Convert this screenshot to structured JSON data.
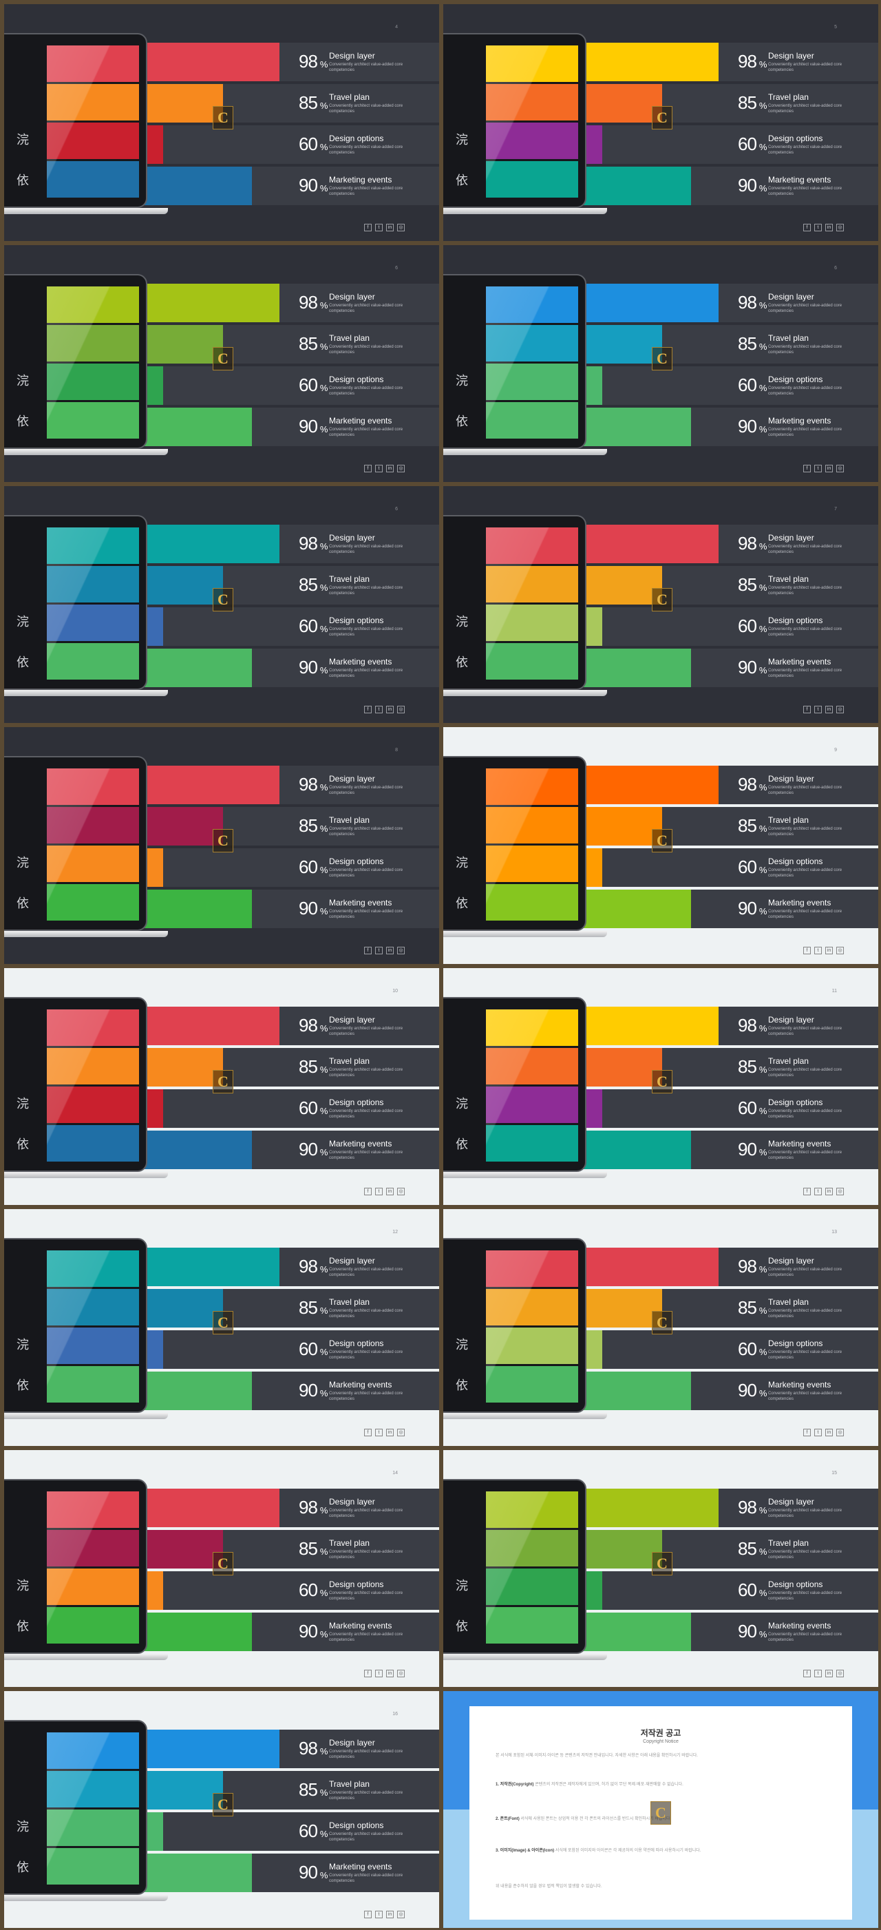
{
  "items": [
    {
      "value": "98",
      "symbol": "%",
      "title": "Design layer",
      "subtitle": "Conveniently architect value-added core competencies"
    },
    {
      "value": "85",
      "symbol": "%",
      "title": "Travel plan",
      "subtitle": "Conveniently architect value-added core competencies"
    },
    {
      "value": "60",
      "symbol": "%",
      "title": "Design options",
      "subtitle": "Conveniently architect value-added core competencies"
    },
    {
      "value": "90",
      "symbol": "%",
      "title": "Marketing events",
      "subtitle": "Conveniently architect value-added core competencies"
    }
  ],
  "stamp_letter": "C",
  "cjk_glyphs": [
    "浣",
    "依"
  ],
  "social_icons": [
    "facebook-icon",
    "twitter-icon",
    "linkedin-icon",
    "instagram-icon"
  ],
  "social_glyphs": [
    "f",
    "t",
    "in",
    "◎"
  ],
  "slides": [
    {
      "theme": "dark",
      "page": "4",
      "colors": [
        "#e0414f",
        "#f7891e",
        "#c9202e",
        "#1f6fa6"
      ]
    },
    {
      "theme": "dark",
      "page": "5",
      "colors": [
        "#ffcc00",
        "#f46a24",
        "#8e2c96",
        "#0aa591"
      ]
    },
    {
      "theme": "dark",
      "page": "6",
      "colors": [
        "#a4c316",
        "#77ac37",
        "#2fa44f",
        "#4cba5d"
      ]
    },
    {
      "theme": "dark",
      "page": "6",
      "colors": [
        "#1d8fdf",
        "#169ec0",
        "#4db86d",
        "#4fb96a"
      ]
    },
    {
      "theme": "dark",
      "page": "6",
      "colors": [
        "#0aa4a2",
        "#1585ab",
        "#3b6bb3",
        "#4cb864"
      ]
    },
    {
      "theme": "dark",
      "page": "7",
      "colors": [
        "#e0414f",
        "#f2a21b",
        "#a9c85c",
        "#4cb864"
      ]
    },
    {
      "theme": "dark",
      "page": "8",
      "colors": [
        "#e0414f",
        "#a11c4a",
        "#f7891e",
        "#3cb442"
      ]
    },
    {
      "theme": "light",
      "page": "9",
      "colors": [
        "#ff6600",
        "#ff8a00",
        "#ff9c00",
        "#86c61f"
      ]
    },
    {
      "theme": "light",
      "page": "10",
      "colors": [
        "#e0414f",
        "#f7891e",
        "#c9202e",
        "#1f6fa6"
      ]
    },
    {
      "theme": "light",
      "page": "11",
      "colors": [
        "#ffcc00",
        "#f46a24",
        "#8e2c96",
        "#0aa591"
      ]
    },
    {
      "theme": "light",
      "page": "12",
      "colors": [
        "#0aa4a2",
        "#1585ab",
        "#3b6bb3",
        "#4cb864"
      ]
    },
    {
      "theme": "light",
      "page": "13",
      "colors": [
        "#e0414f",
        "#f2a21b",
        "#a9c85c",
        "#4cb864"
      ]
    },
    {
      "theme": "light",
      "page": "14",
      "colors": [
        "#e0414f",
        "#a11c4a",
        "#f7891e",
        "#3cb442"
      ]
    },
    {
      "theme": "light",
      "page": "15",
      "colors": [
        "#a4c316",
        "#77ac37",
        "#2fa44f",
        "#4cba5d"
      ]
    },
    {
      "theme": "light",
      "page": "16",
      "colors": [
        "#1d8fdf",
        "#169ec0",
        "#4db86d",
        "#4fb96a"
      ]
    }
  ],
  "notice": {
    "title": "저작권 공고",
    "subtitle": "Copyright Notice",
    "paragraphs": [
      {
        "heading": "",
        "text": "본 서식에 포함된 서체·이미지·아이콘 등 콘텐츠의 저작권 안내입니다. 자세한 사항은 아래 내용을 확인하시기 바랍니다."
      },
      {
        "heading": "1. 저작권(Copyright)",
        "text": " 콘텐츠의 저작권은 제작자에게 있으며, 허가 없이 무단 복제·배포·재판매할 수 없습니다."
      },
      {
        "heading": "2. 폰트(Font)",
        "text": " 서식에 사용된 폰트는 상업적 이용 전 각 폰트의 라이선스를 반드시 확인하시기 바랍니다."
      },
      {
        "heading": "3. 이미지(Image) & 아이콘(Icon)",
        "text": " 서식에 포함된 이미지와 아이콘은 각 제공처의 이용 약관에 따라 사용하시기 바랍니다."
      },
      {
        "heading": "",
        "text": "위 내용을 준수하지 않을 경우 법적 책임이 발생할 수 있습니다."
      }
    ]
  }
}
